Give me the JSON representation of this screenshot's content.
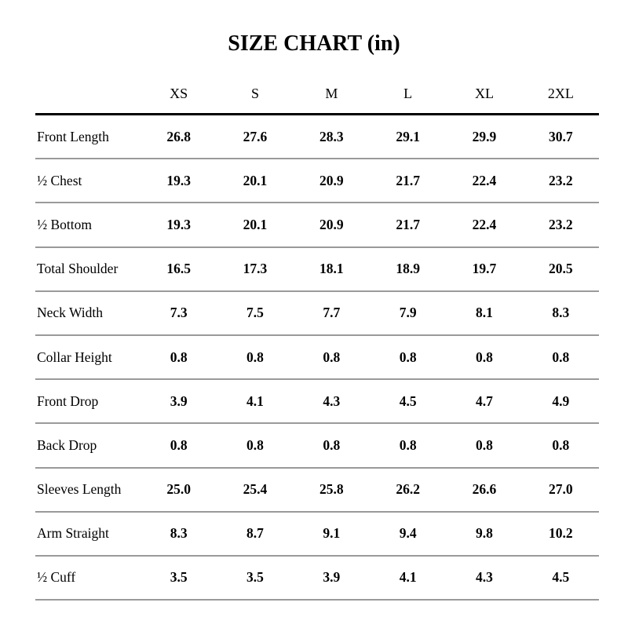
{
  "title": "SIZE CHART (in)",
  "chart_data": {
    "type": "table",
    "title": "SIZE CHART (in)",
    "unit": "in",
    "columns": [
      "XS",
      "S",
      "M",
      "L",
      "XL",
      "2XL"
    ],
    "rows": [
      {
        "label": "Front Length",
        "values": [
          "26.8",
          "27.6",
          "28.3",
          "29.1",
          "29.9",
          "30.7"
        ]
      },
      {
        "label": "½ Chest",
        "values": [
          "19.3",
          "20.1",
          "20.9",
          "21.7",
          "22.4",
          "23.2"
        ]
      },
      {
        "label": "½ Bottom",
        "values": [
          "19.3",
          "20.1",
          "20.9",
          "21.7",
          "22.4",
          "23.2"
        ]
      },
      {
        "label": "Total Shoulder",
        "values": [
          "16.5",
          "17.3",
          "18.1",
          "18.9",
          "19.7",
          "20.5"
        ]
      },
      {
        "label": "Neck Width",
        "values": [
          "7.3",
          "7.5",
          "7.7",
          "7.9",
          "8.1",
          "8.3"
        ]
      },
      {
        "label": "Collar Height",
        "values": [
          "0.8",
          "0.8",
          "0.8",
          "0.8",
          "0.8",
          "0.8"
        ]
      },
      {
        "label": "Front Drop",
        "values": [
          "3.9",
          "4.1",
          "4.3",
          "4.5",
          "4.7",
          "4.9"
        ]
      },
      {
        "label": "Back Drop",
        "values": [
          "0.8",
          "0.8",
          "0.8",
          "0.8",
          "0.8",
          "0.8"
        ]
      },
      {
        "label": "Sleeves Length",
        "values": [
          "25.0",
          "25.4",
          "25.8",
          "26.2",
          "26.6",
          "27.0"
        ]
      },
      {
        "label": "Arm Straight",
        "values": [
          "8.3",
          "8.7",
          "9.1",
          "9.4",
          "9.8",
          "10.2"
        ]
      },
      {
        "label": "½ Cuff",
        "values": [
          "3.5",
          "3.5",
          "3.9",
          "4.1",
          "4.3",
          "4.5"
        ]
      }
    ]
  },
  "colors": {
    "background": "#ffffff",
    "text": "#000000",
    "thick_rule": "#000000",
    "thin_rule": "#9a9a9a"
  }
}
